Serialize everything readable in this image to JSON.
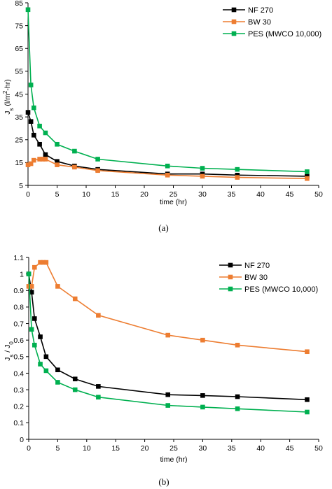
{
  "chart_data": [
    {
      "type": "line",
      "caption": "(a)",
      "xlabel": "time (hr)",
      "ylabel": "J_s (l/m^2-hr)",
      "ylabel_parts": {
        "main": "J",
        "sub": "s",
        "mid": " (l/m",
        "sup": "2",
        "end": "-hr)"
      },
      "xlim": [
        0,
        50
      ],
      "ylim": [
        5,
        85
      ],
      "x_ticks": [
        0,
        5,
        10,
        15,
        20,
        25,
        30,
        35,
        40,
        45,
        50
      ],
      "y_ticks": [
        5,
        15,
        25,
        35,
        45,
        55,
        65,
        75,
        85
      ],
      "legend_position": "top-right",
      "series": [
        {
          "name": "NF 270",
          "color": "#000000",
          "x": [
            0,
            0.5,
            1,
            2,
            3,
            5,
            8,
            12,
            24,
            30,
            36,
            48
          ],
          "y": [
            37,
            33,
            27,
            23,
            18.5,
            15.5,
            13.5,
            12,
            10,
            10,
            9.5,
            9
          ]
        },
        {
          "name": "BW 30",
          "color": "#ED7D31",
          "x": [
            0,
            0.5,
            1,
            2,
            2.5,
            3,
            5,
            8,
            12,
            24,
            30,
            36,
            48
          ],
          "y": [
            14,
            14.5,
            16,
            16.5,
            16.5,
            16.5,
            14,
            13,
            11.5,
            9.5,
            9,
            8.5,
            8
          ]
        },
        {
          "name": "PES (MWCO 10,000)",
          "color": "#00B050",
          "x": [
            0,
            0.5,
            1,
            2,
            3,
            5,
            8,
            12,
            24,
            30,
            36,
            48
          ],
          "y": [
            82,
            49,
            39,
            31,
            28,
            23,
            20,
            16.5,
            13.5,
            12.5,
            12,
            11
          ]
        }
      ]
    },
    {
      "type": "line",
      "caption": "(b)",
      "xlabel": "time (hr)",
      "ylabel": "J_s / J_0",
      "ylabel_parts": {
        "main": "J",
        "sub": "s",
        "mid": " / J",
        "sub2": "0"
      },
      "xlim": [
        0,
        50
      ],
      "ylim": [
        0,
        1.1
      ],
      "x_ticks": [
        0,
        5,
        10,
        15,
        20,
        25,
        30,
        35,
        40,
        45,
        50
      ],
      "y_ticks": [
        0,
        0.1,
        0.2,
        0.3,
        0.4,
        0.5,
        0.6,
        0.7,
        0.8,
        0.9,
        1,
        1.1
      ],
      "legend_position": "top-right",
      "series": [
        {
          "name": "NF 270",
          "color": "#000000",
          "x": [
            0,
            0.5,
            1,
            2,
            3,
            5,
            8,
            12,
            24,
            30,
            36,
            48
          ],
          "y": [
            1.0,
            0.89,
            0.73,
            0.62,
            0.5,
            0.42,
            0.365,
            0.32,
            0.27,
            0.265,
            0.258,
            0.24
          ]
        },
        {
          "name": "BW 30",
          "color": "#ED7D31",
          "x": [
            0,
            0.5,
            1,
            2,
            2.5,
            3,
            5,
            8,
            12,
            24,
            30,
            36,
            48
          ],
          "y": [
            0.925,
            0.925,
            1.04,
            1.07,
            1.07,
            1.07,
            0.925,
            0.85,
            0.75,
            0.63,
            0.6,
            0.57,
            0.53
          ]
        },
        {
          "name": "PES (MWCO 10,000)",
          "color": "#00B050",
          "x": [
            0,
            0.5,
            1,
            2,
            3,
            5,
            8,
            12,
            24,
            30,
            36,
            48
          ],
          "y": [
            1.0,
            0.665,
            0.57,
            0.455,
            0.415,
            0.345,
            0.3,
            0.255,
            0.205,
            0.195,
            0.185,
            0.165
          ]
        }
      ]
    }
  ]
}
